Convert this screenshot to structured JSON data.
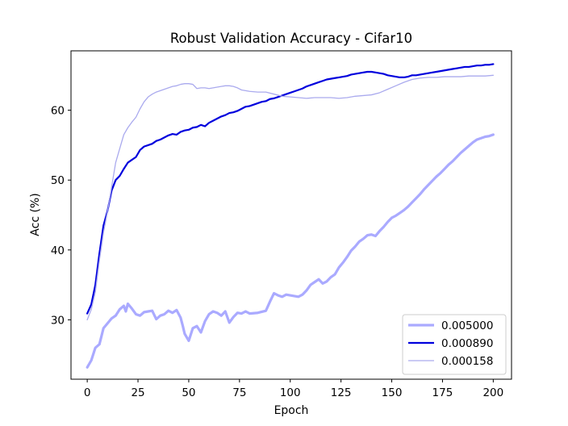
{
  "chart_data": {
    "type": "line",
    "title": "Robust Validation Accuracy - Cifar10",
    "xlabel": "Epoch",
    "ylabel": "Acc (%)",
    "xlim": [
      -8,
      209
    ],
    "ylim": [
      21.5,
      68.5
    ],
    "xticks": [
      0,
      25,
      50,
      75,
      100,
      125,
      150,
      175,
      200
    ],
    "yticks": [
      30,
      40,
      50,
      60
    ],
    "grid": false,
    "legend_position": "lower-right",
    "series": [
      {
        "name": "0.005000",
        "color": "#aaaaff",
        "line_width": 3.2,
        "x": [
          0,
          2,
          4,
          6,
          8,
          10,
          12,
          14,
          16,
          18,
          19,
          20,
          22,
          24,
          26,
          28,
          30,
          32,
          34,
          36,
          38,
          40,
          42,
          44,
          46,
          47,
          48,
          50,
          52,
          54,
          56,
          58,
          60,
          62,
          64,
          66,
          68,
          70,
          72,
          74,
          76,
          78,
          80,
          84,
          88,
          90,
          92,
          94,
          96,
          98,
          100,
          102,
          104,
          106,
          108,
          110,
          112,
          114,
          116,
          118,
          120,
          122,
          124,
          126,
          128,
          130,
          132,
          134,
          136,
          138,
          140,
          142,
          144,
          146,
          148,
          150,
          152,
          154,
          156,
          158,
          160,
          162,
          164,
          166,
          168,
          170,
          172,
          174,
          176,
          178,
          180,
          182,
          184,
          186,
          188,
          190,
          192,
          194,
          196,
          198,
          200
        ],
        "y": [
          23.2,
          24.2,
          26.0,
          26.5,
          28.8,
          29.5,
          30.2,
          30.6,
          31.5,
          32.0,
          31.2,
          32.3,
          31.6,
          30.8,
          30.6,
          31.1,
          31.2,
          31.3,
          30.1,
          30.6,
          30.8,
          31.3,
          31.0,
          31.4,
          30.3,
          29.2,
          28.0,
          27.0,
          28.8,
          29.1,
          28.2,
          29.8,
          30.8,
          31.2,
          31.0,
          30.6,
          31.2,
          29.6,
          30.4,
          31.0,
          30.9,
          31.2,
          30.9,
          31.0,
          31.3,
          32.6,
          33.8,
          33.5,
          33.3,
          33.6,
          33.5,
          33.4,
          33.3,
          33.6,
          34.2,
          35.0,
          35.4,
          35.8,
          35.2,
          35.5,
          36.1,
          36.5,
          37.5,
          38.2,
          39.0,
          39.9,
          40.5,
          41.2,
          41.6,
          42.1,
          42.2,
          42.0,
          42.7,
          43.3,
          44.0,
          44.6,
          44.9,
          45.3,
          45.7,
          46.2,
          46.8,
          47.4,
          48.0,
          48.7,
          49.3,
          49.9,
          50.5,
          51.0,
          51.6,
          52.2,
          52.7,
          53.3,
          53.9,
          54.4,
          54.9,
          55.4,
          55.8,
          56.0,
          56.2,
          56.3,
          56.5
        ]
      },
      {
        "name": "0.000890",
        "color": "#0000dd",
        "line_width": 2.2,
        "x": [
          0,
          2,
          4,
          6,
          8,
          10,
          12,
          14,
          16,
          18,
          20,
          22,
          24,
          26,
          28,
          30,
          32,
          34,
          36,
          38,
          40,
          42,
          44,
          46,
          48,
          50,
          52,
          54,
          56,
          58,
          60,
          62,
          64,
          66,
          68,
          70,
          72,
          74,
          76,
          78,
          80,
          82,
          84,
          86,
          88,
          90,
          92,
          94,
          96,
          98,
          100,
          102,
          104,
          106,
          108,
          110,
          112,
          114,
          116,
          118,
          120,
          122,
          124,
          126,
          128,
          130,
          132,
          134,
          136,
          138,
          140,
          142,
          144,
          146,
          148,
          150,
          152,
          154,
          156,
          158,
          160,
          162,
          164,
          166,
          168,
          170,
          172,
          174,
          176,
          178,
          180,
          182,
          184,
          186,
          188,
          190,
          192,
          194,
          196,
          198,
          200
        ],
        "y": [
          30.9,
          32.2,
          35.0,
          39.5,
          43.5,
          45.6,
          48.5,
          50.0,
          50.6,
          51.6,
          52.5,
          52.9,
          53.3,
          54.3,
          54.8,
          55.0,
          55.2,
          55.6,
          55.8,
          56.1,
          56.4,
          56.6,
          56.5,
          56.9,
          57.1,
          57.2,
          57.5,
          57.6,
          57.9,
          57.7,
          58.2,
          58.5,
          58.8,
          59.1,
          59.3,
          59.6,
          59.7,
          59.9,
          60.2,
          60.5,
          60.6,
          60.8,
          61.0,
          61.2,
          61.3,
          61.6,
          61.7,
          61.9,
          62.1,
          62.3,
          62.5,
          62.7,
          62.9,
          63.1,
          63.4,
          63.6,
          63.8,
          64.0,
          64.2,
          64.4,
          64.5,
          64.6,
          64.7,
          64.8,
          64.9,
          65.1,
          65.2,
          65.3,
          65.4,
          65.5,
          65.5,
          65.4,
          65.3,
          65.2,
          65.0,
          64.9,
          64.8,
          64.7,
          64.7,
          64.8,
          65.0,
          65.0,
          65.1,
          65.2,
          65.3,
          65.4,
          65.5,
          65.6,
          65.7,
          65.8,
          65.9,
          66.0,
          66.1,
          66.2,
          66.2,
          66.3,
          66.4,
          66.4,
          66.5,
          66.5,
          66.6
        ]
      },
      {
        "name": "0.000158",
        "color": "#aaaaee",
        "line_width": 1.3,
        "x": [
          0,
          2,
          4,
          6,
          8,
          10,
          12,
          14,
          16,
          18,
          20,
          22,
          24,
          26,
          28,
          30,
          32,
          34,
          36,
          38,
          40,
          42,
          44,
          46,
          48,
          50,
          52,
          54,
          56,
          58,
          60,
          62,
          64,
          66,
          68,
          70,
          72,
          74,
          76,
          78,
          80,
          84,
          88,
          92,
          96,
          100,
          104,
          108,
          112,
          116,
          120,
          124,
          128,
          132,
          136,
          140,
          144,
          148,
          152,
          156,
          160,
          164,
          168,
          172,
          176,
          180,
          184,
          188,
          192,
          196,
          200
        ],
        "y": [
          30.0,
          31.5,
          34.0,
          38.5,
          42.5,
          45.5,
          49.0,
          52.5,
          54.5,
          56.5,
          57.5,
          58.3,
          59.0,
          60.2,
          61.2,
          61.9,
          62.3,
          62.6,
          62.8,
          63.0,
          63.2,
          63.4,
          63.5,
          63.7,
          63.8,
          63.8,
          63.7,
          63.1,
          63.2,
          63.2,
          63.1,
          63.2,
          63.3,
          63.4,
          63.5,
          63.5,
          63.4,
          63.2,
          62.9,
          62.8,
          62.7,
          62.6,
          62.6,
          62.3,
          62.0,
          61.9,
          61.8,
          61.7,
          61.8,
          61.8,
          61.8,
          61.7,
          61.8,
          62.0,
          62.1,
          62.2,
          62.5,
          63.0,
          63.5,
          64.0,
          64.4,
          64.6,
          64.7,
          64.7,
          64.8,
          64.8,
          64.8,
          64.9,
          64.9,
          64.9,
          65.0
        ]
      }
    ]
  }
}
